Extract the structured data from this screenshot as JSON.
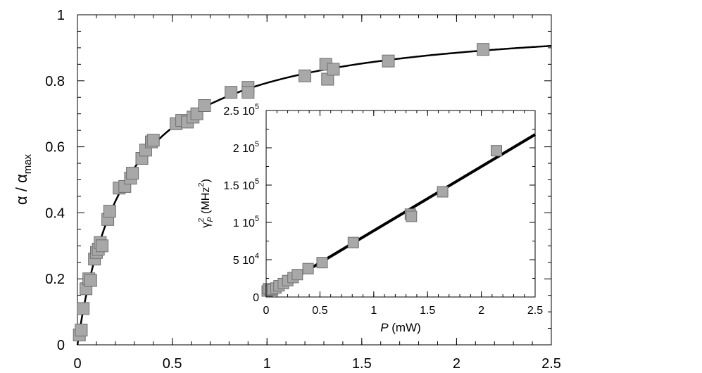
{
  "chart_data": [
    {
      "type": "scatter",
      "panel": "main",
      "title": "",
      "xlabel": "",
      "ylabel": {
        "base": "α / α",
        "sub": "max"
      },
      "xlim": [
        0,
        2.5
      ],
      "ylim": [
        0,
        1
      ],
      "x_ticks": [
        0,
        0.5,
        1,
        1.5,
        2,
        2.5
      ],
      "x_tick_labels": [
        "0",
        "0.5",
        "1",
        "1.5",
        "2",
        "2.5"
      ],
      "y_ticks": [
        0,
        0.2,
        0.4,
        0.6,
        0.8,
        1
      ],
      "y_tick_labels": [
        "0",
        "0.2",
        "0.4",
        "0.6",
        "0.8",
        "1"
      ],
      "grid": false,
      "marker": "square",
      "marker_color": "#a8a8a8",
      "points": [
        [
          0.01,
          0.03
        ],
        [
          0.02,
          0.045
        ],
        [
          0.03,
          0.11
        ],
        [
          0.045,
          0.17
        ],
        [
          0.06,
          0.2
        ],
        [
          0.07,
          0.195
        ],
        [
          0.09,
          0.26
        ],
        [
          0.1,
          0.28
        ],
        [
          0.11,
          0.29
        ],
        [
          0.12,
          0.31
        ],
        [
          0.13,
          0.3
        ],
        [
          0.16,
          0.38
        ],
        [
          0.17,
          0.405
        ],
        [
          0.22,
          0.475
        ],
        [
          0.25,
          0.48
        ],
        [
          0.28,
          0.505
        ],
        [
          0.29,
          0.52
        ],
        [
          0.34,
          0.565
        ],
        [
          0.36,
          0.59
        ],
        [
          0.39,
          0.615
        ],
        [
          0.4,
          0.62
        ],
        [
          0.52,
          0.67
        ],
        [
          0.55,
          0.68
        ],
        [
          0.58,
          0.675
        ],
        [
          0.61,
          0.69
        ],
        [
          0.63,
          0.7
        ],
        [
          0.67,
          0.725
        ],
        [
          0.81,
          0.765
        ],
        [
          0.9,
          0.78
        ],
        [
          0.9,
          0.765
        ],
        [
          1.2,
          0.815
        ],
        [
          1.31,
          0.85
        ],
        [
          1.32,
          0.805
        ],
        [
          1.35,
          0.835
        ],
        [
          1.64,
          0.86
        ],
        [
          2.14,
          0.895
        ]
      ],
      "fit_curve": {
        "type": "saturation",
        "formula": "x / (x + x0)",
        "x0": 0.26
      }
    },
    {
      "type": "scatter",
      "panel": "inset",
      "title": "",
      "xlabel": {
        "italic": "P",
        "rest": " (mW)"
      },
      "ylabel": {
        "base": "γ",
        "sup": "2",
        "sub": "P",
        "rest": " (MHz",
        "rest_sup": "2",
        "rest_end": ")"
      },
      "xlim": [
        0,
        2.5
      ],
      "ylim": [
        0,
        250000
      ],
      "x_ticks": [
        0,
        0.5,
        1,
        1.5,
        2,
        2.5
      ],
      "x_tick_labels": [
        "0",
        "0.5",
        "1",
        "1.5",
        "2",
        "2.5"
      ],
      "y_ticks": [
        0,
        50000,
        100000,
        150000,
        200000,
        250000
      ],
      "y_tick_labels": [
        {
          "mant": "0",
          "exp": ""
        },
        {
          "mant": "5 10",
          "exp": "4"
        },
        {
          "mant": "1 10",
          "exp": "5"
        },
        {
          "mant": "1.5 10",
          "exp": "5"
        },
        {
          "mant": "2 10",
          "exp": "5"
        },
        {
          "mant": "2.5 10",
          "exp": "5"
        }
      ],
      "grid": false,
      "marker": "square",
      "marker_color": "#a8a8a8",
      "points": [
        [
          0.01,
          8000
        ],
        [
          0.02,
          11000
        ],
        [
          0.04,
          9000
        ],
        [
          0.06,
          10000
        ],
        [
          0.09,
          12000
        ],
        [
          0.12,
          15000
        ],
        [
          0.16,
          18000
        ],
        [
          0.2,
          22000
        ],
        [
          0.25,
          26000
        ],
        [
          0.29,
          30000
        ],
        [
          0.39,
          38000
        ],
        [
          0.52,
          46000
        ],
        [
          0.81,
          73000
        ],
        [
          1.34,
          111000
        ],
        [
          1.35,
          108000
        ],
        [
          1.64,
          141000
        ],
        [
          2.14,
          196000
        ]
      ],
      "fit_line": {
        "intercept": 2800,
        "slope": 86000
      }
    }
  ]
}
